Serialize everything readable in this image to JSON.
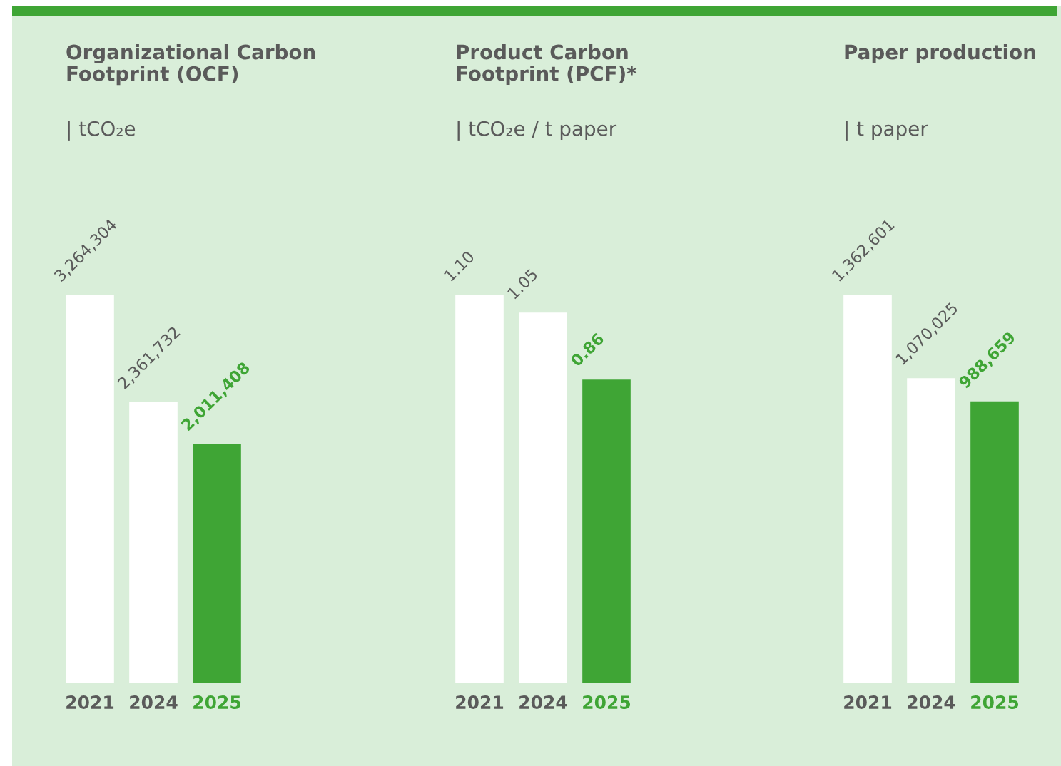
{
  "chart_data": [
    {
      "type": "bar",
      "title": "Organizational Carbon\nFootprint (OCF)",
      "subtitle": "| tCO₂e",
      "categories": [
        "2021",
        "2024",
        "2025"
      ],
      "values": [
        3264304,
        2361732,
        2011408
      ],
      "colors": [
        "#ffffff",
        "#ffffff",
        "#3fa535"
      ],
      "value_labels": [
        "3,264,304",
        "2,361,732",
        "2,011,408"
      ],
      "tick_labels": "x"
    },
    {
      "type": "bar",
      "title": "Product Carbon\nFootprint (PCF)*",
      "subtitle": "| tCO₂e / t paper",
      "categories": [
        "2021",
        "2024",
        "2025"
      ],
      "values": [
        1.1,
        1.05,
        0.86
      ],
      "colors": [
        "#ffffff",
        "#ffffff",
        "#3fa535"
      ],
      "value_labels": [
        "1.10",
        "1.05",
        "0.86"
      ],
      "tick_labels": "x"
    },
    {
      "type": "bar",
      "title": "Paper production",
      "subtitle": "| t paper",
      "categories": [
        "2021",
        "2024",
        "2025"
      ],
      "values": [
        1362601,
        1070025,
        988659
      ],
      "colors": [
        "#ffffff",
        "#ffffff",
        "#3fa535"
      ],
      "value_labels": [
        "1,362,601",
        "1,070,025",
        "988,659"
      ],
      "tick_labels": "x"
    }
  ]
}
